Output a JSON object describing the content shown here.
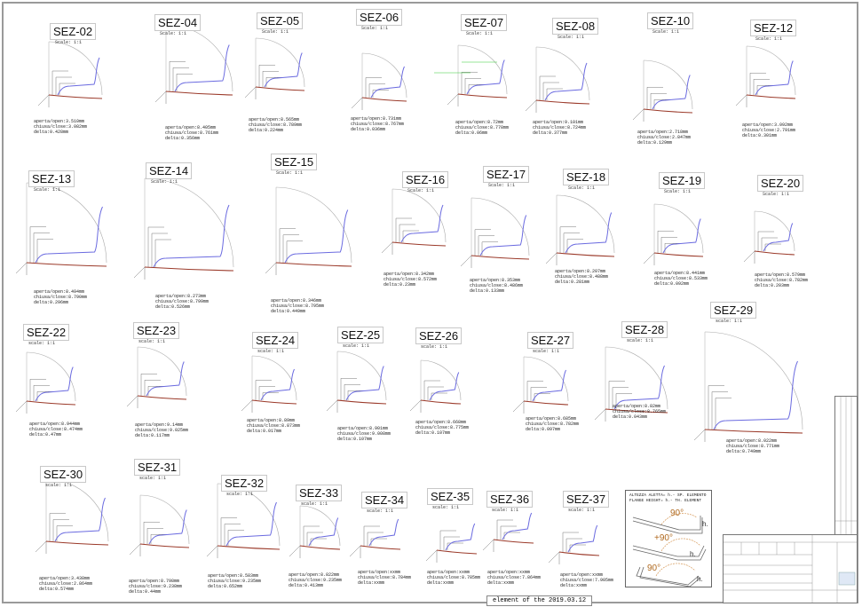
{
  "sheet": {
    "footer_note": "element of the 2019.03.12",
    "colors": {
      "profile_open": "#6b6be0",
      "profile_closed": "#9b3a2a",
      "dimension": "#777777",
      "green_dim": "#33cc33"
    }
  },
  "legend": {
    "line1": "ALTEZZA ALETTA= h.- SP. ELEMENTO",
    "line2": "FLANGE HEIGHT= h.- TH. ELEMENT",
    "angle": "90°",
    "angle_plus": "+90°",
    "h_label": "h."
  },
  "sections": [
    {
      "name": "SEZ-02",
      "scale": "Scale: 1:1",
      "open": "aperta/open:3.510mm",
      "close": "chiusa/close:3.082mm",
      "delta": "delta:0.428mm"
    },
    {
      "name": "SEZ-04",
      "scale": "Scale: 1:1",
      "open": "aperta/open:8.405mm",
      "close": "chiusa/close:8.761mm",
      "delta": "delta:0.356mm"
    },
    {
      "name": "SEZ-05",
      "scale": "Scale: 1:1",
      "open": "aperta/open:8.565mm",
      "close": "chiusa/close:8.789mm",
      "delta": "delta:0.224mm"
    },
    {
      "name": "SEZ-06",
      "scale": "Scale: 1:1",
      "open": "aperta/open:8.731mm",
      "close": "chiusa/close:8.767mm",
      "delta": "delta:0.036mm"
    },
    {
      "name": "SEZ-07",
      "scale": "Scale: 1:1",
      "open": "aperta/open:8.72mm",
      "close": "chiusa/close:8.778mm",
      "delta": "delta:0.06mm"
    },
    {
      "name": "SEZ-08",
      "scale": "Scale: 1:1",
      "open": "aperta/open:9.101mm",
      "close": "chiusa/close:8.724mm",
      "delta": "delta:0.377mm"
    },
    {
      "name": "SEZ-10",
      "scale": "Scale: 1:1",
      "open": "aperta/open:2.718mm",
      "close": "chiusa/close:2.847mm",
      "delta": "delta:0.129mm"
    },
    {
      "name": "SEZ-12",
      "scale": "Scale: 1:1",
      "open": "aperta/open:3.092mm",
      "close": "chiusa/close:2.791mm",
      "delta": "delta:0.301mm"
    },
    {
      "name": "SEZ-13",
      "scale": "Scale: 1:1",
      "open": "aperta/open:8.494mm",
      "close": "chiusa/close:8.790mm",
      "delta": "delta:0.296mm"
    },
    {
      "name": "SEZ-14",
      "scale": "Scale: 1:1",
      "open": "aperta/open:8.273mm",
      "close": "chiusa/close:8.799mm",
      "delta": "delta:0.526mm"
    },
    {
      "name": "SEZ-15",
      "scale": "Scale: 1:1",
      "open": "aperta/open:8.346mm",
      "close": "chiusa/close:8.795mm",
      "delta": "delta:0.449mm"
    },
    {
      "name": "SEZ-16",
      "scale": "Scale: 1:1",
      "open": "aperta/open:8.342mm",
      "close": "chiusa/close:8.572mm",
      "delta": "delta:0.23mm"
    },
    {
      "name": "SEZ-17",
      "scale": "Scale: 1:1",
      "open": "aperta/open:8.353mm",
      "close": "chiusa/close:8.486mm",
      "delta": "delta:0.133mm"
    },
    {
      "name": "SEZ-18",
      "scale": "Scale: 1:1",
      "open": "aperta/open:8.207mm",
      "close": "chiusa/close:8.488mm",
      "delta": "delta:0.281mm"
    },
    {
      "name": "SEZ-19",
      "scale": "Scale: 1:1",
      "open": "aperta/open:8.441mm",
      "close": "chiusa/close:8.533mm",
      "delta": "delta:0.092mm"
    },
    {
      "name": "SEZ-20",
      "scale": "Scale: 1:1",
      "open": "aperta/open:8.579mm",
      "close": "chiusa/close:8.782mm",
      "delta": "delta:0.203mm"
    },
    {
      "name": "SEZ-22",
      "scale": "scale: 1:1",
      "open": "aperta/open:8.944mm",
      "close": "chiusa/close:8.474mm",
      "delta": "delta:0.47mm"
    },
    {
      "name": "SEZ-23",
      "scale": "scale: 1:1",
      "open": "aperta/open:9.14mm",
      "close": "chiusa/close:9.025mm",
      "delta": "delta:0.117mm"
    },
    {
      "name": "SEZ-24",
      "scale": "scale: 1:1",
      "open": "aperta/open:8.89mm",
      "close": "chiusa/close:8.873mm",
      "delta": "delta:0.017mm"
    },
    {
      "name": "SEZ-25",
      "scale": "scale: 1:1",
      "open": "aperta/open:8.901mm",
      "close": "chiusa/close:9.008mm",
      "delta": "delta:0.107mm"
    },
    {
      "name": "SEZ-26",
      "scale": "scale: 1:1",
      "open": "aperta/open:8.668mm",
      "close": "chiusa/close:8.775mm",
      "delta": "delta:0.107mm"
    },
    {
      "name": "SEZ-27",
      "scale": "scale: 1:1",
      "open": "aperta/open:8.685mm",
      "close": "chiusa/close:8.782mm",
      "delta": "delta:0.097mm"
    },
    {
      "name": "SEZ-28",
      "scale": "scale: 1:1",
      "open": "aperta/open:8.82mm",
      "close": "chiusa/close:8.765mm",
      "delta": "delta:0.043mm"
    },
    {
      "name": "SEZ-29",
      "scale": "scale: 1:1",
      "open": "aperta/open:8.022mm",
      "close": "chiusa/close:8.771mm",
      "delta": "delta:0.749mm"
    },
    {
      "name": "SEZ-30",
      "scale": "scale: 1:1",
      "open": "aperta/open:3.438mm",
      "close": "chiusa/close:2.864mm",
      "delta": "delta:0.574mm"
    },
    {
      "name": "SEZ-31",
      "scale": "scale: 1:1",
      "open": "aperta/open:8.798mm",
      "close": "chiusa/close:9.238mm",
      "delta": "delta:0.44mm"
    },
    {
      "name": "SEZ-32",
      "scale": "scale: 1:1",
      "open": "aperta/open:8.583mm",
      "close": "chiusa/close:9.235mm",
      "delta": "delta:0.652mm"
    },
    {
      "name": "SEZ-33",
      "scale": "scale: 1:1",
      "open": "aperta/open:8.822mm",
      "close": "chiusa/close:9.235mm",
      "delta": "delta:0.413mm"
    },
    {
      "name": "SEZ-34",
      "scale": "scale: 1:1",
      "open": "aperta/open:xxmm",
      "close": "chiusa/close:8.784mm",
      "delta": "delta:xxmm"
    },
    {
      "name": "SEZ-35",
      "scale": "scale: 1:1",
      "open": "aperta/open:xxmm",
      "close": "chiusa/close:8.785mm",
      "delta": "delta:xxmm"
    },
    {
      "name": "SEZ-36",
      "scale": "scale: 1:1",
      "open": "aperta/open:xxmm",
      "close": "chiusa/close:7.864mm",
      "delta": "delta:xxmm"
    },
    {
      "name": "SEZ-37",
      "scale": "scale: 1:1",
      "open": "aperta/open:xxmm",
      "close": "chiusa/close:7.905mm",
      "delta": "delta:xxmm"
    }
  ]
}
